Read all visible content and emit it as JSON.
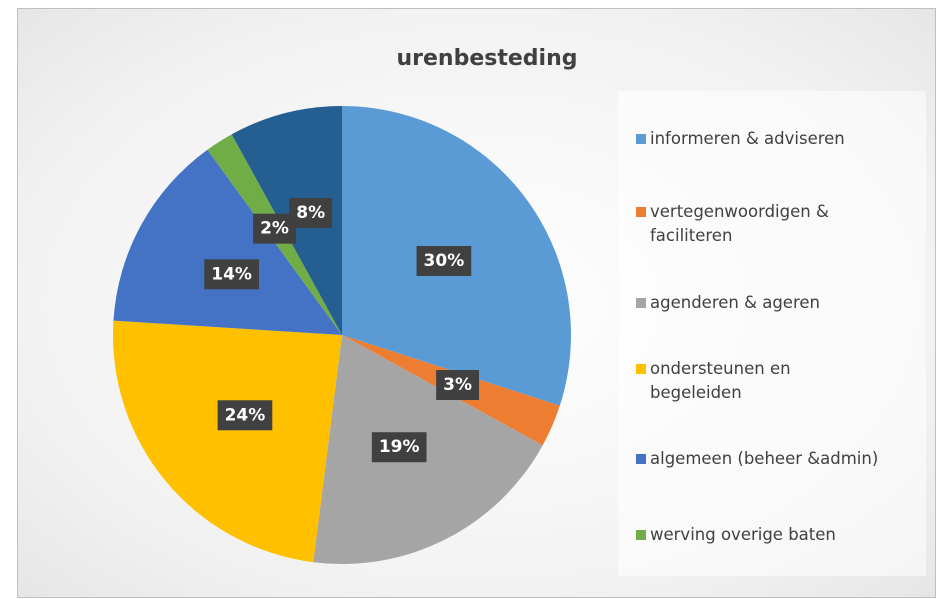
{
  "chart_data": {
    "type": "pie",
    "title": "urenbesteding",
    "categories": [
      "informeren & adviseren",
      "vertegenwoordigen & faciliteren",
      "agenderen & ageren",
      "ondersteunen en begeleiden",
      "algemeen (beheer &admin)",
      "werving overige baten",
      null
    ],
    "values": [
      30,
      3,
      19,
      24,
      14,
      2,
      8
    ],
    "value_labels": [
      "30%",
      "3%",
      "19%",
      "24%",
      "14%",
      "2%",
      "8%"
    ],
    "colors": [
      "#5b9bd5",
      "#ed7d31",
      "#a5a5a5",
      "#ffc000",
      "#4472c4",
      "#70ad47",
      "#255e91"
    ],
    "legend": "right"
  }
}
